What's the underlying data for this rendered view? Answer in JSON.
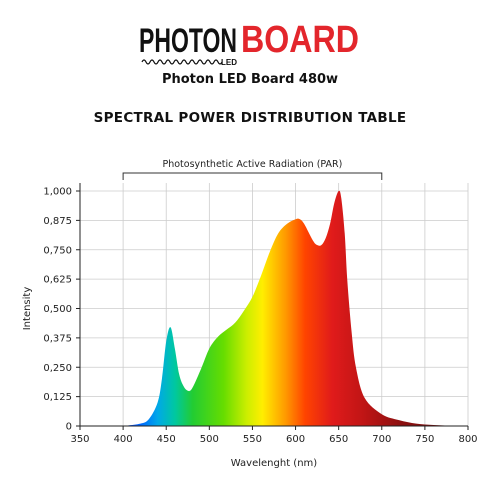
{
  "logo": {
    "word1": "PHOTON",
    "word_small": "LED",
    "word2": "BOARD"
  },
  "subtitle": "Photon LED Board 480w",
  "colors": {
    "brand_red": "#e3262c",
    "logo_black": "#111111"
  },
  "chart_data": {
    "type": "area",
    "title": "SPECTRAL POWER DISTRIBUTION TABLE",
    "annotation": {
      "label": "Photosynthetic Active Radiation (PAR)",
      "x_start": 400,
      "x_end": 700
    },
    "xlabel": "Wavelenght (nm)",
    "ylabel": "Intensity",
    "xlim": [
      350,
      800
    ],
    "ylim": [
      0,
      1.0
    ],
    "xticks": [
      350,
      400,
      450,
      500,
      550,
      600,
      650,
      700,
      750,
      800
    ],
    "yticks": [
      "0",
      "0,125",
      "0,250",
      "0,375",
      "0,500",
      "0,625",
      "0,750",
      "0,875",
      "1,000"
    ],
    "grid": true,
    "fill": "spectral-gradient",
    "series": [
      {
        "x": [
          400,
          420,
          430,
          440,
          445,
          450,
          455,
          460,
          465,
          470,
          475,
          480,
          490,
          500,
          510,
          520,
          530,
          540,
          550,
          560,
          570,
          580,
          590,
          600,
          605,
          610,
          620,
          625,
          630,
          635,
          640,
          645,
          650,
          653,
          657,
          660,
          665,
          670,
          680,
          700,
          720,
          740,
          760,
          780,
          800
        ],
        "y": [
          0,
          0.01,
          0.03,
          0.1,
          0.2,
          0.36,
          0.42,
          0.33,
          0.22,
          0.17,
          0.15,
          0.16,
          0.24,
          0.33,
          0.38,
          0.41,
          0.44,
          0.49,
          0.55,
          0.64,
          0.74,
          0.82,
          0.86,
          0.88,
          0.88,
          0.86,
          0.79,
          0.77,
          0.77,
          0.8,
          0.86,
          0.95,
          1.0,
          0.97,
          0.82,
          0.62,
          0.4,
          0.25,
          0.12,
          0.05,
          0.025,
          0.01,
          0.004,
          0.001,
          0
        ]
      }
    ]
  }
}
